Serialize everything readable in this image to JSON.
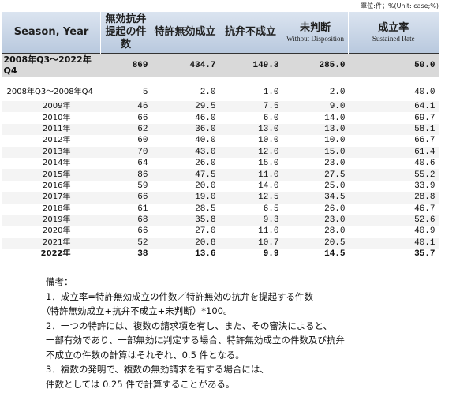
{
  "unit": "單位:件；%(Unit: case;%)",
  "table": {
    "header": [
      {
        "main": "Season, Year"
      },
      {
        "main": "無効抗弁提起の件数"
      },
      {
        "main": "特許無効成立"
      },
      {
        "main": "抗弁不成立"
      },
      {
        "main": "未判断",
        "sub": "Without Disposition"
      },
      {
        "main": "成立率",
        "sub": "Sustained Rate"
      }
    ],
    "total": [
      "2008年Q3～2022年Q4",
      "869",
      "434.7",
      "149.3",
      "285.0",
      "50.0"
    ],
    "rows": [
      [
        "2008年Q3～2008年Q4",
        "5",
        "2.0",
        "1.0",
        "2.0",
        "40.0"
      ],
      [
        "2009年",
        "46",
        "29.5",
        "7.5",
        "9.0",
        "64.1"
      ],
      [
        "2010年",
        "66",
        "46.0",
        "6.0",
        "14.0",
        "69.7"
      ],
      [
        "2011年",
        "62",
        "36.0",
        "13.0",
        "13.0",
        "58.1"
      ],
      [
        "2012年",
        "60",
        "40.0",
        "10.0",
        "10.0",
        "66.7"
      ],
      [
        "2013年",
        "70",
        "43.0",
        "12.0",
        "15.0",
        "61.4"
      ],
      [
        "2014年",
        "64",
        "26.0",
        "15.0",
        "23.0",
        "40.6"
      ],
      [
        "2015年",
        "86",
        "47.5",
        "11.0",
        "27.5",
        "55.2"
      ],
      [
        "2016年",
        "59",
        "20.0",
        "14.0",
        "25.0",
        "33.9"
      ],
      [
        "2017年",
        "66",
        "19.0",
        "12.5",
        "34.5",
        "28.8"
      ],
      [
        "2018年",
        "61",
        "28.5",
        "6.5",
        "26.0",
        "46.7"
      ],
      [
        "2019年",
        "68",
        "35.8",
        "9.3",
        "23.0",
        "52.6"
      ],
      [
        "2020年",
        "66",
        "27.0",
        "11.0",
        "28.0",
        "40.9"
      ],
      [
        "2021年",
        "52",
        "20.8",
        "10.7",
        "20.5",
        "40.1"
      ],
      [
        "2022年",
        "38",
        "13.6",
        "9.9",
        "14.5",
        "35.7"
      ]
    ]
  },
  "notes": [
    "備考：",
    "1．成立率=特許無効成立の件数／特許無効の抗弁を提起する件数",
    "（特許無効成立+抗弁不成立+未判断）*100。",
    "2．一つの特許には、複数の請求項を有し、また、その審決によると、",
    "一部有効であり、一部無効に判定する場合、特許無効成立の件数及び抗弁",
    "不成立の件数の計算はそれぞれ、0.5 件となる。",
    "3．複数の発明で、複数の無効請求を有する場合には、",
    "件数としては 0.25 件で計算することがある。"
  ]
}
